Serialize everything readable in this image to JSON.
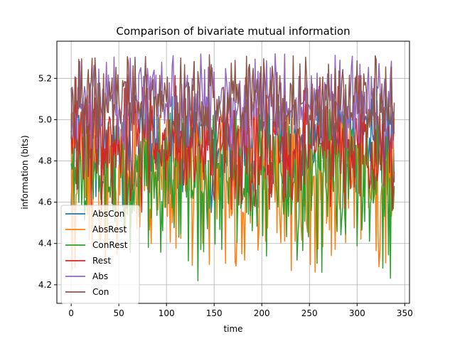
{
  "chart_data": {
    "type": "line",
    "title": "Comparison of bivariate mutual information",
    "xlabel": "time",
    "ylabel": "information (bits)",
    "xlim": [
      -15,
      355
    ],
    "ylim": [
      4.11,
      5.38
    ],
    "xticks": [
      0,
      50,
      100,
      150,
      200,
      250,
      300,
      350
    ],
    "yticks": [
      4.2,
      4.4,
      4.6,
      4.8,
      5.0,
      5.2
    ],
    "xtick_labels": [
      "0",
      "50",
      "100",
      "150",
      "200",
      "250",
      "300",
      "350"
    ],
    "ytick_labels": [
      "4.2",
      "4.4",
      "4.6",
      "4.8",
      "5.0",
      "5.2"
    ],
    "grid": true,
    "legend_position": "lower-left",
    "n_points": 340,
    "series": [
      {
        "name": "AbsCon",
        "color": "#1f77b4",
        "mean": 4.86,
        "spread": 0.1,
        "min": 4.55,
        "max": 5.12
      },
      {
        "name": "AbsRest",
        "color": "#ff7f0e",
        "mean": 4.75,
        "spread": 0.14,
        "min": 4.16,
        "max": 5.05
      },
      {
        "name": "ConRest",
        "color": "#2ca02c",
        "mean": 4.72,
        "spread": 0.13,
        "min": 4.15,
        "max": 5.05
      },
      {
        "name": "Rest",
        "color": "#d62728",
        "mean": 4.88,
        "spread": 0.1,
        "min": 4.55,
        "max": 5.22
      },
      {
        "name": "Abs",
        "color": "#9467bd",
        "mean": 5.09,
        "spread": 0.08,
        "min": 4.85,
        "max": 5.32
      },
      {
        "name": "Con",
        "color": "#8c564b",
        "mean": 5.07,
        "spread": 0.08,
        "min": 4.85,
        "max": 5.32
      }
    ]
  }
}
